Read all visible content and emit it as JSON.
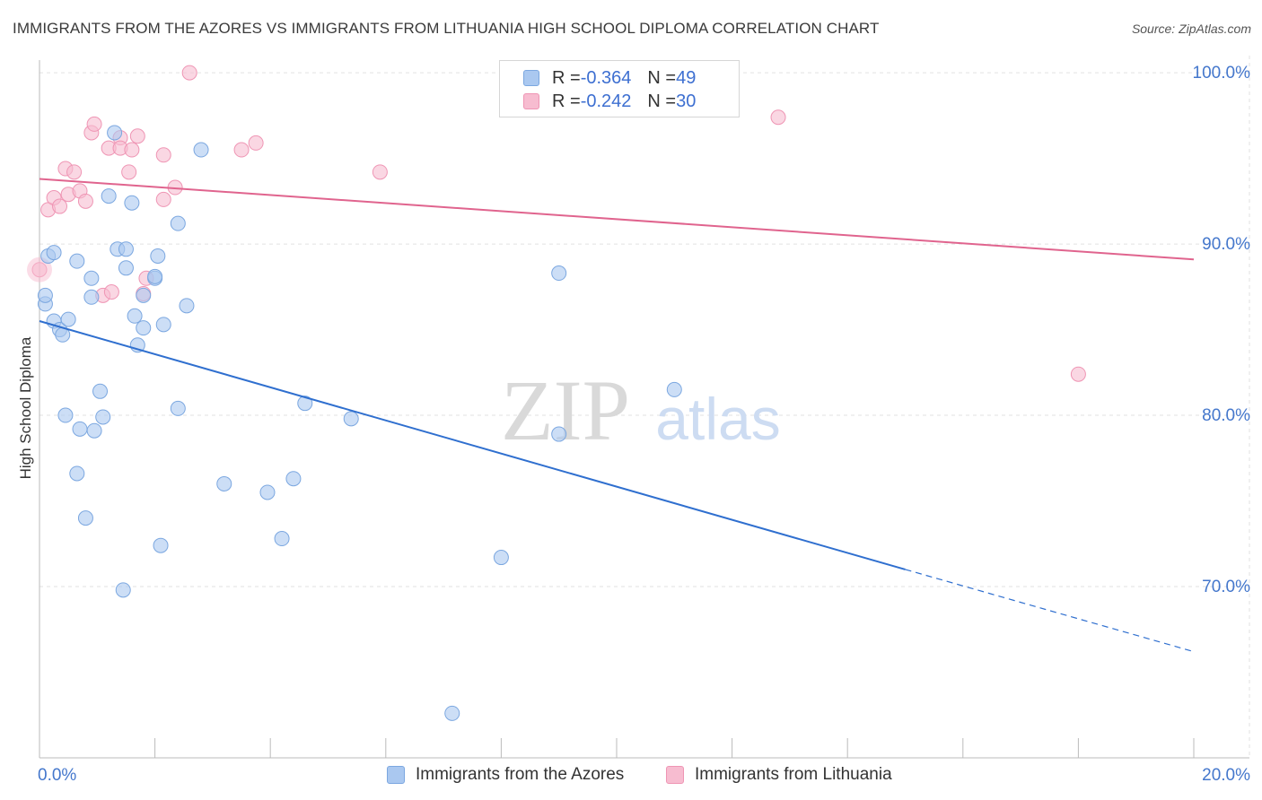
{
  "title": "IMMIGRANTS FROM THE AZORES VS IMMIGRANTS FROM LITHUANIA HIGH SCHOOL DIPLOMA CORRELATION CHART",
  "source": "Source: ZipAtlas.com",
  "watermark": {
    "zip": "ZIP",
    "atlas": "atlas"
  },
  "colors": {
    "blue_fill": "#aac8f0",
    "blue_stroke": "#7ba7e0",
    "blue_line": "#2f6fcf",
    "pink_fill": "#f7bcd0",
    "pink_stroke": "#ef95b4",
    "pink_line": "#e0648e",
    "axis_label": "#4477cc",
    "grid": "#e2e2e2"
  },
  "legend": {
    "azores": {
      "r_label": "R = ",
      "r_value": "-0.364",
      "n_label": "N = ",
      "n_value": "49"
    },
    "lithuania": {
      "r_label": "R = ",
      "r_value": "-0.242",
      "n_label": "N = ",
      "n_value": "30"
    }
  },
  "chart_data": {
    "type": "scatter",
    "title": "IMMIGRANTS FROM THE AZORES VS IMMIGRANTS FROM LITHUANIA HIGH SCHOOL DIPLOMA CORRELATION CHART",
    "xlabel": "",
    "ylabel": "High School Diploma",
    "xlim": [
      0,
      20
    ],
    "ylim": [
      60.0,
      101.0
    ],
    "x_tick_labels": [
      {
        "value": 0,
        "label": "0.0%"
      },
      {
        "value": 20,
        "label": "20.0%"
      }
    ],
    "y_tick_labels": [
      {
        "value": 100,
        "label": "100.0%"
      },
      {
        "value": 90,
        "label": "90.0%"
      },
      {
        "value": 80,
        "label": "80.0%"
      },
      {
        "value": 70,
        "label": "70.0%"
      }
    ],
    "series": [
      {
        "name": "Immigrants from the Azores",
        "color": "#aac8f0",
        "R": -0.364,
        "N": 49,
        "trend": {
          "x0": 0.0,
          "y0": 85.5,
          "x1": 15.0,
          "y1": 71.0,
          "dash_to_x": 20.0,
          "dash_to_y": 66.2
        },
        "points": [
          [
            0.1,
            86.5
          ],
          [
            0.1,
            87.0
          ],
          [
            0.15,
            89.3
          ],
          [
            0.25,
            89.5
          ],
          [
            0.25,
            85.5
          ],
          [
            0.35,
            85.0
          ],
          [
            0.4,
            84.7
          ],
          [
            0.5,
            85.6
          ],
          [
            0.65,
            89.0
          ],
          [
            0.9,
            88.0
          ],
          [
            0.9,
            86.9
          ],
          [
            0.45,
            80.0
          ],
          [
            0.7,
            79.2
          ],
          [
            0.95,
            79.1
          ],
          [
            1.05,
            81.4
          ],
          [
            1.1,
            79.9
          ],
          [
            0.65,
            76.6
          ],
          [
            0.8,
            74.0
          ],
          [
            1.2,
            92.8
          ],
          [
            1.35,
            89.7
          ],
          [
            1.5,
            88.6
          ],
          [
            1.6,
            92.4
          ],
          [
            1.65,
            85.8
          ],
          [
            1.7,
            84.1
          ],
          [
            1.8,
            85.1
          ],
          [
            1.8,
            87.0
          ],
          [
            1.3,
            96.5
          ],
          [
            2.0,
            88.0
          ],
          [
            2.05,
            89.3
          ],
          [
            2.15,
            85.3
          ],
          [
            2.4,
            91.2
          ],
          [
            2.55,
            86.4
          ],
          [
            2.4,
            80.4
          ],
          [
            2.1,
            72.4
          ],
          [
            1.45,
            69.8
          ],
          [
            2.8,
            95.5
          ],
          [
            3.2,
            76.0
          ],
          [
            3.95,
            75.5
          ],
          [
            4.4,
            76.3
          ],
          [
            4.2,
            72.8
          ],
          [
            4.6,
            80.7
          ],
          [
            5.4,
            79.8
          ],
          [
            7.15,
            62.6
          ],
          [
            8.0,
            71.7
          ],
          [
            9.0,
            78.9
          ],
          [
            9.0,
            88.3
          ],
          [
            11.0,
            81.5
          ],
          [
            1.5,
            89.7
          ],
          [
            2.0,
            88.1
          ]
        ]
      },
      {
        "name": "Immigrants from Lithuania",
        "color": "#f7bcd0",
        "R": -0.242,
        "N": 30,
        "trend": {
          "x0": 0.0,
          "y0": 93.8,
          "x1": 20.0,
          "y1": 89.1
        },
        "points": [
          [
            0.0,
            88.5
          ],
          [
            0.15,
            92.0
          ],
          [
            0.25,
            92.7
          ],
          [
            0.35,
            92.2
          ],
          [
            0.45,
            94.4
          ],
          [
            0.5,
            92.9
          ],
          [
            0.6,
            94.2
          ],
          [
            0.7,
            93.1
          ],
          [
            0.8,
            92.5
          ],
          [
            0.9,
            96.5
          ],
          [
            0.95,
            97.0
          ],
          [
            1.1,
            87.0
          ],
          [
            1.2,
            95.6
          ],
          [
            1.25,
            87.2
          ],
          [
            1.4,
            96.2
          ],
          [
            1.4,
            95.6
          ],
          [
            1.55,
            94.2
          ],
          [
            1.6,
            95.5
          ],
          [
            1.7,
            96.3
          ],
          [
            1.8,
            87.1
          ],
          [
            1.85,
            88.0
          ],
          [
            2.15,
            92.6
          ],
          [
            2.15,
            95.2
          ],
          [
            2.35,
            93.3
          ],
          [
            2.6,
            100.0
          ],
          [
            3.5,
            95.5
          ],
          [
            3.75,
            95.9
          ],
          [
            5.9,
            94.2
          ],
          [
            12.8,
            97.4
          ],
          [
            18.0,
            82.4
          ]
        ]
      }
    ],
    "bottom_legend": [
      "Immigrants from the Azores",
      "Immigrants from Lithuania"
    ]
  }
}
